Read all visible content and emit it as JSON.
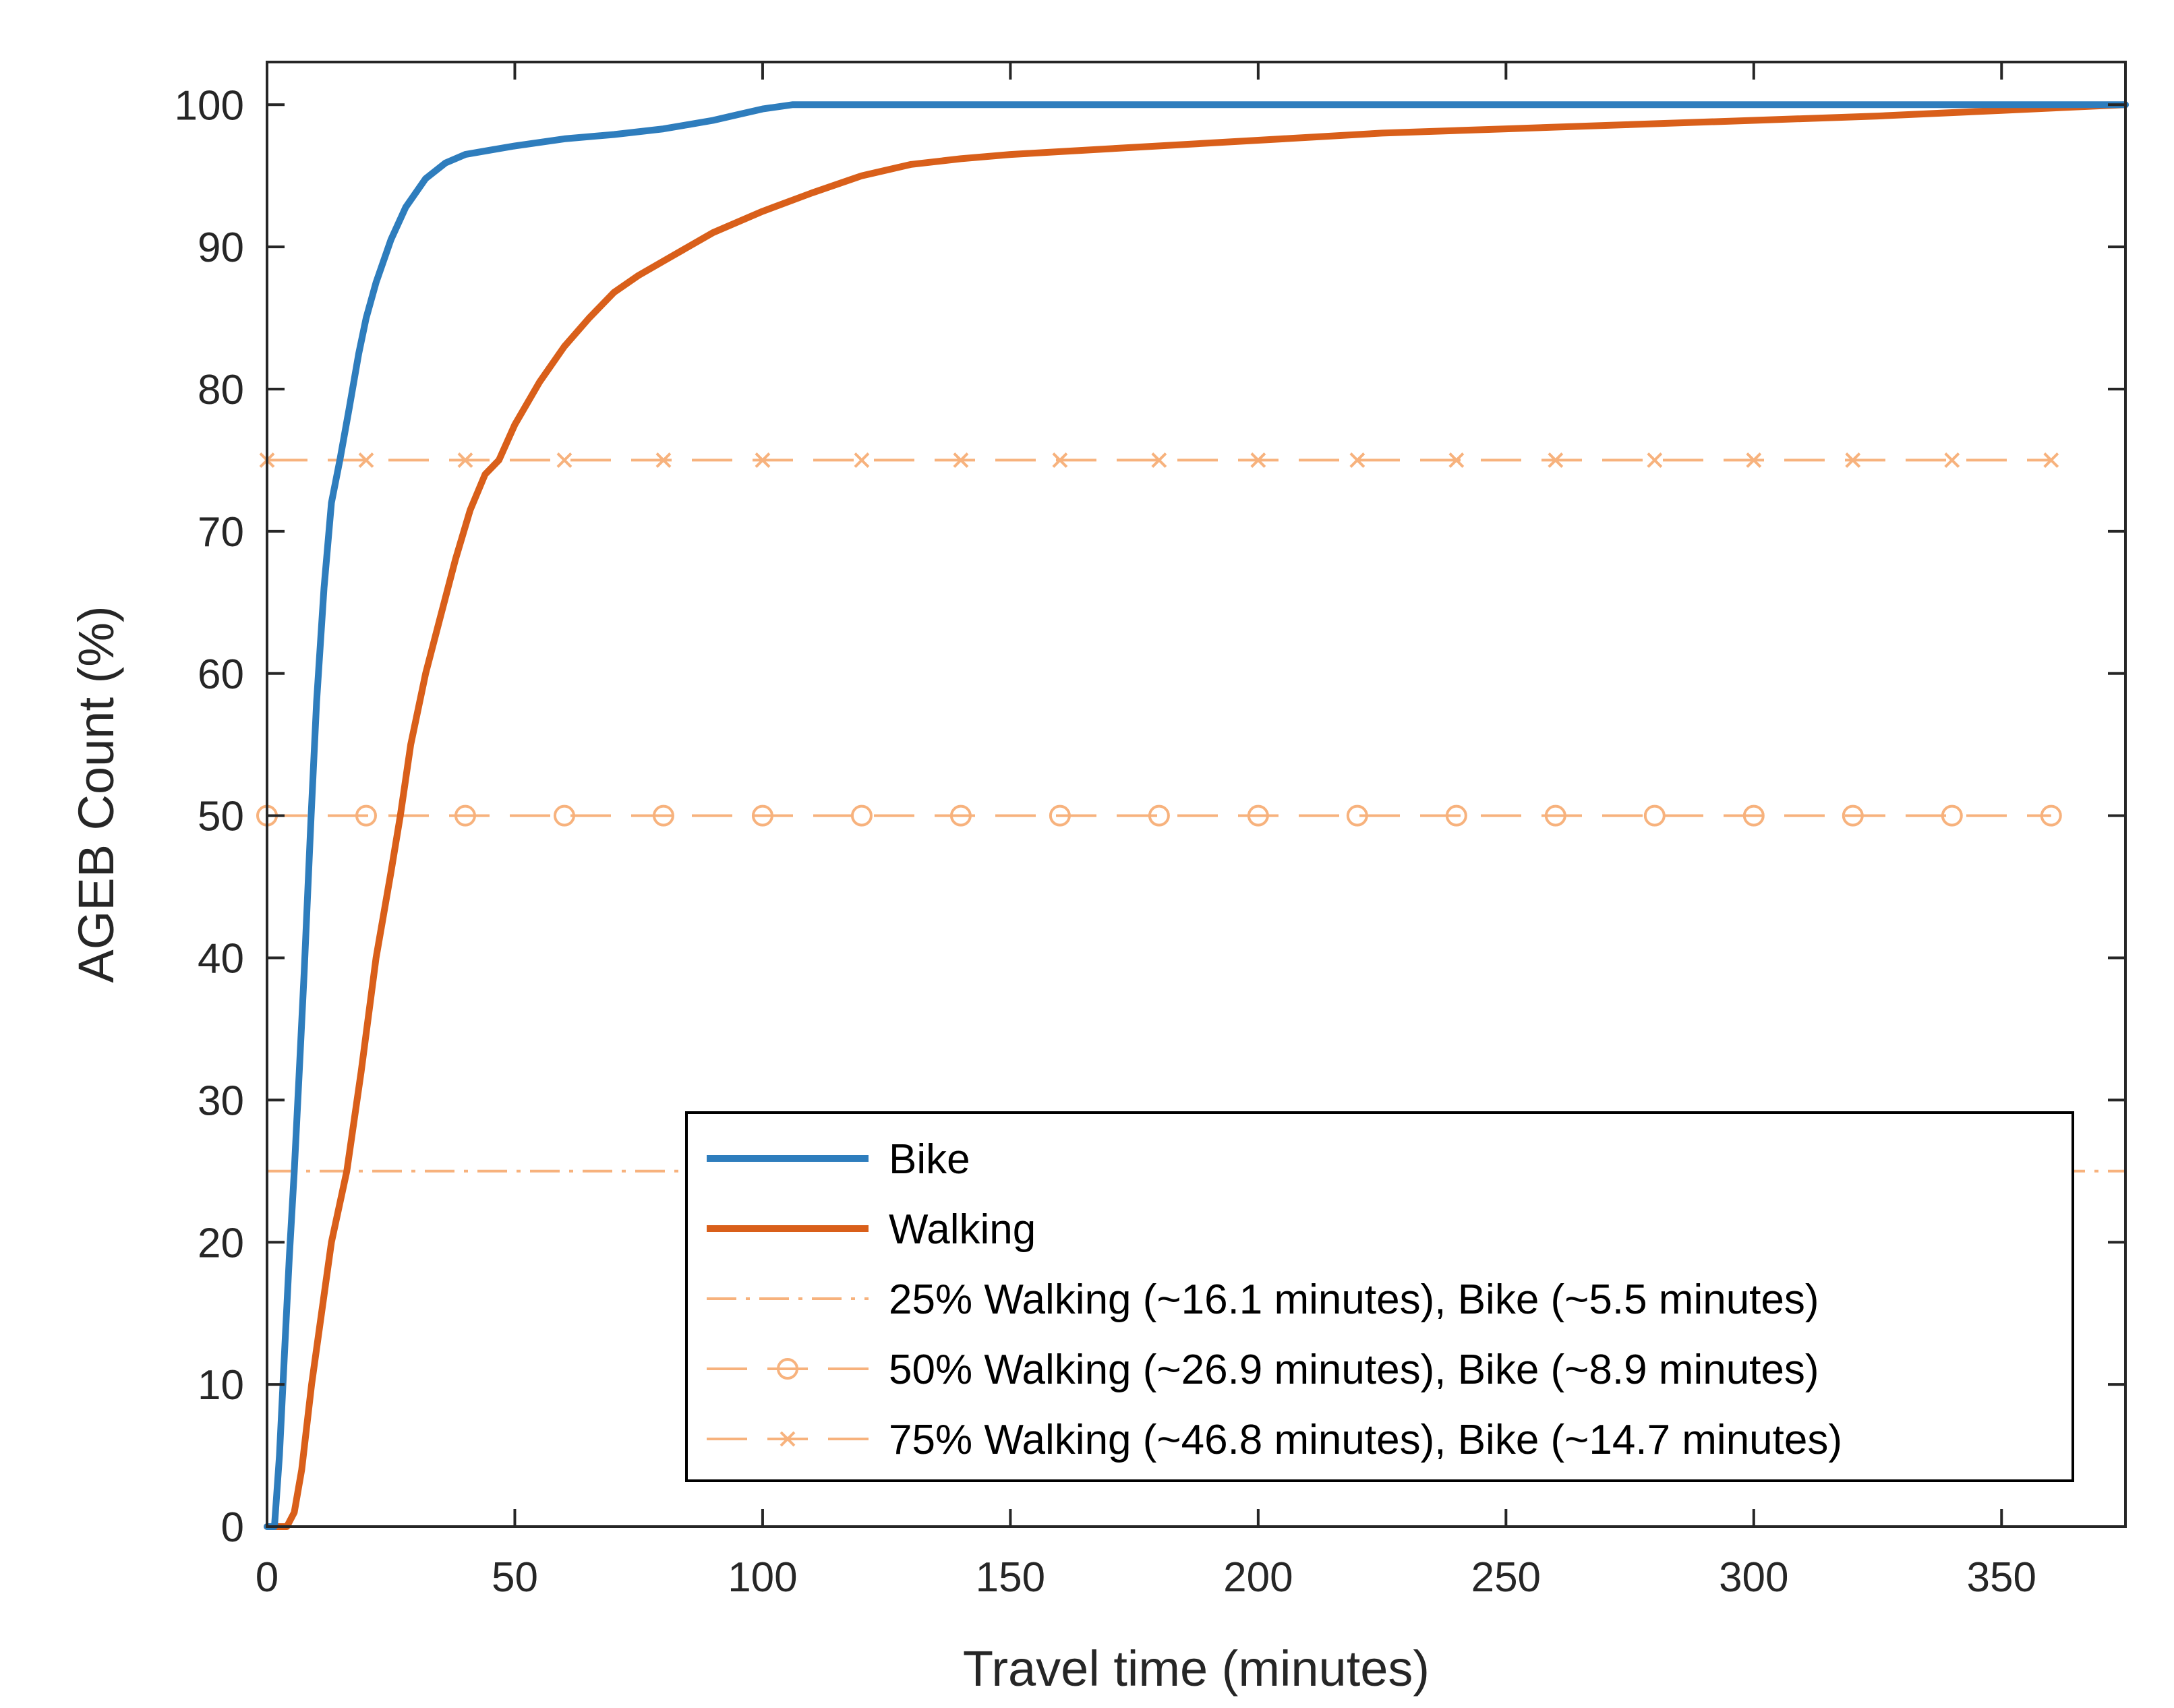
{
  "chart_data": {
    "type": "line",
    "xlabel": "Travel time (minutes)",
    "ylabel": "AGEB Count (%)",
    "xlim": [
      0,
      375
    ],
    "ylim": [
      0,
      103
    ],
    "xticks": [
      0,
      50,
      100,
      150,
      200,
      250,
      300,
      350
    ],
    "yticks": [
      0,
      10,
      20,
      30,
      40,
      50,
      60,
      70,
      80,
      90,
      100
    ],
    "grid": false,
    "legend_position": "bottom-right",
    "colors": {
      "bike": "#2e7dbd",
      "walking": "#d95f1a",
      "reference": "#f7b27d",
      "axis": "#262626"
    },
    "series": [
      {
        "name": "Bike",
        "style": "solid",
        "x": [
          0,
          1.5,
          2.5,
          3.5,
          4.5,
          5.5,
          6.5,
          7.5,
          8.9,
          10,
          11.5,
          13,
          14.7,
          16.5,
          18.5,
          20,
          22,
          25,
          28,
          32,
          36,
          40,
          45,
          50,
          60,
          70,
          80,
          85,
          90,
          95,
          100,
          106,
          120,
          200,
          300,
          375
        ],
        "y": [
          0,
          0,
          5,
          12,
          19,
          25,
          32,
          39,
          50,
          58,
          66,
          72,
          75,
          78.5,
          82.5,
          85,
          87.5,
          90.5,
          92.8,
          94.8,
          95.9,
          96.5,
          96.8,
          97.1,
          97.6,
          97.9,
          98.3,
          98.6,
          98.9,
          99.3,
          99.7,
          100,
          100,
          100,
          100,
          100
        ]
      },
      {
        "name": "Walking",
        "style": "solid",
        "x": [
          0,
          4,
          5.5,
          7,
          9,
          11,
          13,
          16.1,
          19,
          22,
          25,
          26.9,
          29,
          32,
          35,
          38,
          41,
          44,
          46.8,
          50,
          55,
          60,
          65,
          70,
          75,
          80,
          90,
          100,
          110,
          120,
          130,
          140,
          150,
          175,
          200,
          225,
          250,
          275,
          300,
          325,
          350,
          375
        ],
        "y": [
          0,
          0,
          1,
          4,
          10,
          15,
          20,
          25,
          32,
          40,
          46,
          50,
          55,
          60,
          64,
          68,
          71.5,
          74,
          75,
          77.5,
          80.5,
          83,
          85,
          86.8,
          88,
          89,
          91,
          92.5,
          93.8,
          95,
          95.8,
          96.2,
          96.5,
          97,
          97.5,
          98,
          98.3,
          98.6,
          98.9,
          99.2,
          99.6,
          100
        ]
      },
      {
        "name": "25% Walking (~16.1 minutes), Bike (~5.5 minutes)",
        "style": "dash-dot",
        "marker": "none",
        "x": [
          0,
          375
        ],
        "y": [
          25,
          25
        ]
      },
      {
        "name": "50% Walking (~26.9 minutes), Bike (~8.9 minutes)",
        "style": "dashed",
        "marker": "circle",
        "x": [
          0,
          20,
          40,
          60,
          80,
          100,
          120,
          140,
          160,
          180,
          200,
          220,
          240,
          260,
          280,
          300,
          320,
          340,
          360
        ],
        "y": [
          50,
          50,
          50,
          50,
          50,
          50,
          50,
          50,
          50,
          50,
          50,
          50,
          50,
          50,
          50,
          50,
          50,
          50,
          50
        ]
      },
      {
        "name": "75% Walking (~46.8 minutes), Bike (~14.7 minutes)",
        "style": "dashed",
        "marker": "x",
        "x": [
          0,
          20,
          40,
          60,
          80,
          100,
          120,
          140,
          160,
          180,
          200,
          220,
          240,
          260,
          280,
          300,
          320,
          340,
          360
        ],
        "y": [
          75,
          75,
          75,
          75,
          75,
          75,
          75,
          75,
          75,
          75,
          75,
          75,
          75,
          75,
          75,
          75,
          75,
          75,
          75
        ]
      }
    ]
  }
}
